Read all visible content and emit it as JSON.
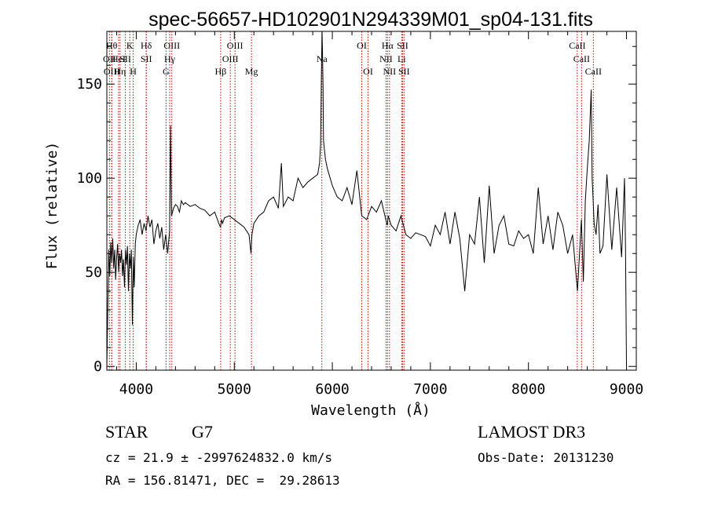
{
  "chart_data": {
    "type": "line",
    "title": "spec-56657-HD102901N294339M01_sp04-131.fits",
    "xlabel": "Wavelength (Å)",
    "ylabel": "Flux (relative)",
    "xlim": [
      3700,
      9100
    ],
    "ylim": [
      -2,
      178
    ],
    "xticks": [
      4000,
      5000,
      6000,
      7000,
      8000,
      9000
    ],
    "yticks": [
      0,
      50,
      100,
      150
    ],
    "grid": false,
    "series": [
      {
        "color": "#000000",
        "x": [
          3700,
          3710,
          3720,
          3730,
          3740,
          3750,
          3760,
          3770,
          3780,
          3790,
          3800,
          3810,
          3820,
          3830,
          3840,
          3850,
          3860,
          3870,
          3880,
          3890,
          3900,
          3910,
          3920,
          3930,
          3940,
          3950,
          3960,
          3970,
          3980,
          3990,
          4000,
          4020,
          4040,
          4060,
          4080,
          4100,
          4120,
          4140,
          4160,
          4180,
          4200,
          4220,
          4240,
          4260,
          4280,
          4300,
          4320,
          4340,
          4350,
          4360,
          4380,
          4400,
          4420,
          4440,
          4460,
          4480,
          4500,
          4550,
          4600,
          4650,
          4700,
          4750,
          4800,
          4850,
          4860,
          4870,
          4880,
          4900,
          4950,
          5000,
          5050,
          5100,
          5150,
          5170,
          5180,
          5200,
          5250,
          5300,
          5350,
          5400,
          5450,
          5480,
          5500,
          5550,
          5600,
          5650,
          5700,
          5750,
          5800,
          5850,
          5870,
          5880,
          5890,
          5895,
          5900,
          5905,
          5910,
          5930,
          5950,
          6000,
          6050,
          6100,
          6150,
          6200,
          6250,
          6300,
          6350,
          6400,
          6450,
          6500,
          6550,
          6560,
          6570,
          6600,
          6650,
          6700,
          6750,
          6800,
          6850,
          6900,
          6950,
          7000,
          7050,
          7100,
          7150,
          7200,
          7250,
          7300,
          7350,
          7400,
          7450,
          7500,
          7550,
          7600,
          7650,
          7700,
          7750,
          7800,
          7850,
          7900,
          7950,
          8000,
          8050,
          8100,
          8150,
          8200,
          8250,
          8300,
          8350,
          8400,
          8450,
          8500,
          8540,
          8560,
          8580,
          8600,
          8620,
          8640,
          8650,
          8660,
          8670,
          8690,
          8710,
          8730,
          8760,
          8800,
          8850,
          8900,
          8950,
          8980,
          8990,
          9000
        ],
        "y": [
          0,
          30,
          62,
          48,
          66,
          55,
          68,
          52,
          62,
          46,
          58,
          65,
          50,
          60,
          55,
          62,
          48,
          57,
          42,
          62,
          54,
          64,
          40,
          60,
          52,
          62,
          22,
          58,
          42,
          65,
          70,
          75,
          78,
          70,
          76,
          72,
          80,
          74,
          78,
          65,
          72,
          76,
          68,
          74,
          62,
          70,
          60,
          72,
          128,
          80,
          84,
          86,
          85,
          82,
          88,
          86,
          87,
          85,
          86,
          84,
          83,
          80,
          82,
          75,
          74,
          78,
          76,
          79,
          80,
          78,
          76,
          74,
          70,
          60,
          70,
          76,
          80,
          82,
          88,
          90,
          84,
          108,
          85,
          90,
          88,
          100,
          95,
          98,
          100,
          102,
          108,
          118,
          160,
          178,
          165,
          150,
          120,
          110,
          105,
          96,
          90,
          88,
          95,
          86,
          104,
          80,
          78,
          85,
          82,
          88,
          77,
          75,
          80,
          75,
          72,
          80,
          70,
          68,
          71,
          70,
          69,
          64,
          75,
          70,
          82,
          65,
          82,
          68,
          40,
          70,
          65,
          90,
          55,
          96,
          60,
          75,
          80,
          65,
          64,
          72,
          68,
          70,
          60,
          95,
          65,
          80,
          62,
          82,
          75,
          60,
          70,
          40,
          78,
          45,
          88,
          105,
          120,
          147,
          100,
          88,
          76,
          70,
          86,
          60,
          64,
          102,
          62,
          95,
          58,
          100,
          62,
          0
        ]
      }
    ],
    "annotations": [
      {
        "x": 3727,
        "row": 1,
        "text": "OII"
      },
      {
        "x": 3750,
        "row": 0,
        "text": "Hθ"
      },
      {
        "x": 3750,
        "row": 2,
        "text": "OIII"
      },
      {
        "x": 3820,
        "row": 1,
        "text": "HeI"
      },
      {
        "x": 3835,
        "row": 2,
        "text": "Hη"
      },
      {
        "x": 3889,
        "row": 1,
        "text": "SII"
      },
      {
        "x": 3934,
        "row": 0,
        "text": "K"
      },
      {
        "x": 3969,
        "row": 2,
        "text": "H"
      },
      {
        "x": 4102,
        "row": 0,
        "text": "Hδ"
      },
      {
        "x": 4102,
        "row": 1,
        "text": "SII"
      },
      {
        "x": 4304,
        "row": 2,
        "text": "G"
      },
      {
        "x": 4341,
        "row": 1,
        "text": "Hγ"
      },
      {
        "x": 4363,
        "row": 0,
        "text": "OIII"
      },
      {
        "x": 4861,
        "row": 2,
        "text": "Hβ"
      },
      {
        "x": 4959,
        "row": 1,
        "text": "OIII"
      },
      {
        "x": 5007,
        "row": 0,
        "text": "OIII"
      },
      {
        "x": 5175,
        "row": 2,
        "text": "Mg"
      },
      {
        "x": 5893,
        "row": 1,
        "text": "Na"
      },
      {
        "x": 6300,
        "row": 0,
        "text": "OI"
      },
      {
        "x": 6364,
        "row": 2,
        "text": "OI"
      },
      {
        "x": 6548,
        "row": 1,
        "text": "NII"
      },
      {
        "x": 6563,
        "row": 0,
        "text": "Hα"
      },
      {
        "x": 6583,
        "row": 2,
        "text": "NII"
      },
      {
        "x": 6707,
        "row": 1,
        "text": "Li"
      },
      {
        "x": 6716,
        "row": 0,
        "text": "SII"
      },
      {
        "x": 6731,
        "row": 2,
        "text": "SII"
      },
      {
        "x": 8498,
        "row": 0,
        "text": "CaII"
      },
      {
        "x": 8542,
        "row": 1,
        "text": "CaII"
      },
      {
        "x": 8662,
        "row": 2,
        "text": "CaII"
      }
    ]
  },
  "info": {
    "class": "STAR",
    "subclass": "G7",
    "survey": "LAMOST DR3",
    "cz": "cz = 21.9 ± -2997624832.0 km/s",
    "obsdate": "Obs-Date: 20131230",
    "radec": "RA = 156.81471, DEC =  29.28613"
  }
}
